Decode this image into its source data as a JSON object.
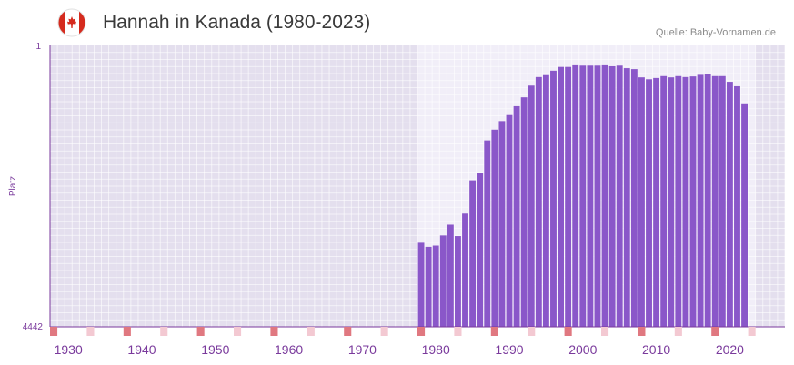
{
  "header": {
    "title": "Hannah in Kanada (1980-2023)",
    "source": "Quelle: Baby-Vornamen.de",
    "flag_icon": "canada-flag-icon"
  },
  "colors": {
    "bar": "#8a57c9",
    "background_outer": "#e4dfee",
    "background_inner": "#f1eef8",
    "axis": "#7a3a9c",
    "tick_marker_major": "#e07880",
    "tick_marker_minor": "#f3c9d2"
  },
  "chart_data": {
    "type": "bar",
    "title": "Hannah in Kanada (1980-2023)",
    "ylabel": "Platz",
    "xlabel": "",
    "y_inverted": true,
    "ylim": [
      1,
      4442
    ],
    "y_ticks": [
      "1",
      "4442"
    ],
    "xlim": [
      1928,
      2028
    ],
    "x_ticks": [
      1930,
      1940,
      1950,
      1960,
      1970,
      1980,
      1990,
      2000,
      2010,
      2020
    ],
    "highlight_range": [
      1978,
      2023
    ],
    "x": [
      1978,
      1979,
      1980,
      1981,
      1982,
      1983,
      1984,
      1985,
      1986,
      1987,
      1988,
      1989,
      1990,
      1991,
      1992,
      1993,
      1994,
      1995,
      1996,
      1997,
      1998,
      1999,
      2000,
      2001,
      2002,
      2003,
      2004,
      2005,
      2006,
      2007,
      2008,
      2009,
      2010,
      2011,
      2012,
      2013,
      2014,
      2015,
      2016,
      2017,
      2018,
      2019,
      2020,
      2021,
      2022
    ],
    "values": [
      3115,
      3180,
      3160,
      3000,
      2830,
      3010,
      2655,
      2130,
      2015,
      1500,
      1330,
      1195,
      1100,
      960,
      820,
      635,
      500,
      470,
      400,
      340,
      340,
      315,
      320,
      320,
      320,
      315,
      330,
      320,
      360,
      375,
      505,
      535,
      515,
      485,
      505,
      485,
      500,
      490,
      465,
      455,
      485,
      485,
      575,
      645,
      915
    ]
  }
}
